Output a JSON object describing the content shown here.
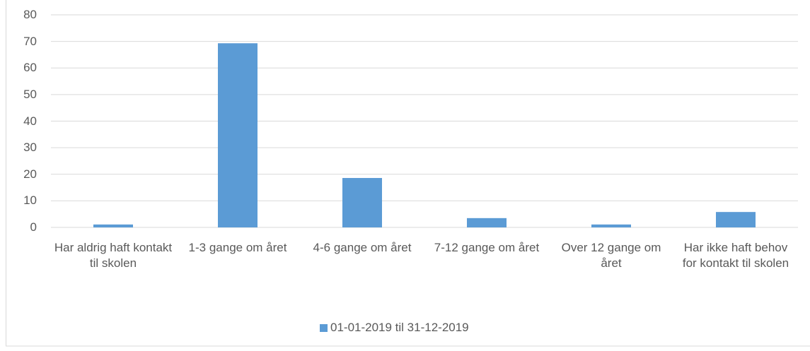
{
  "chart_data": {
    "type": "bar",
    "categories": [
      "Har aldrig haft kontakt til skolen",
      "1-3 gange om året",
      "4-6 gange om året",
      "7-12 gange om året",
      "Over 12 gange om året",
      "Har ikke haft behov for kontakt til skolen"
    ],
    "series": [
      {
        "name": "01-01-2019 til 31-12-2019",
        "color": "#5b9bd5",
        "values": [
          1.1,
          69.3,
          18.6,
          3.5,
          1.1,
          5.8
        ]
      }
    ],
    "ylim": [
      0,
      80
    ],
    "yticks": [
      0,
      10,
      20,
      30,
      40,
      50,
      60,
      70,
      80
    ],
    "grid": true,
    "legend": "bottom"
  }
}
